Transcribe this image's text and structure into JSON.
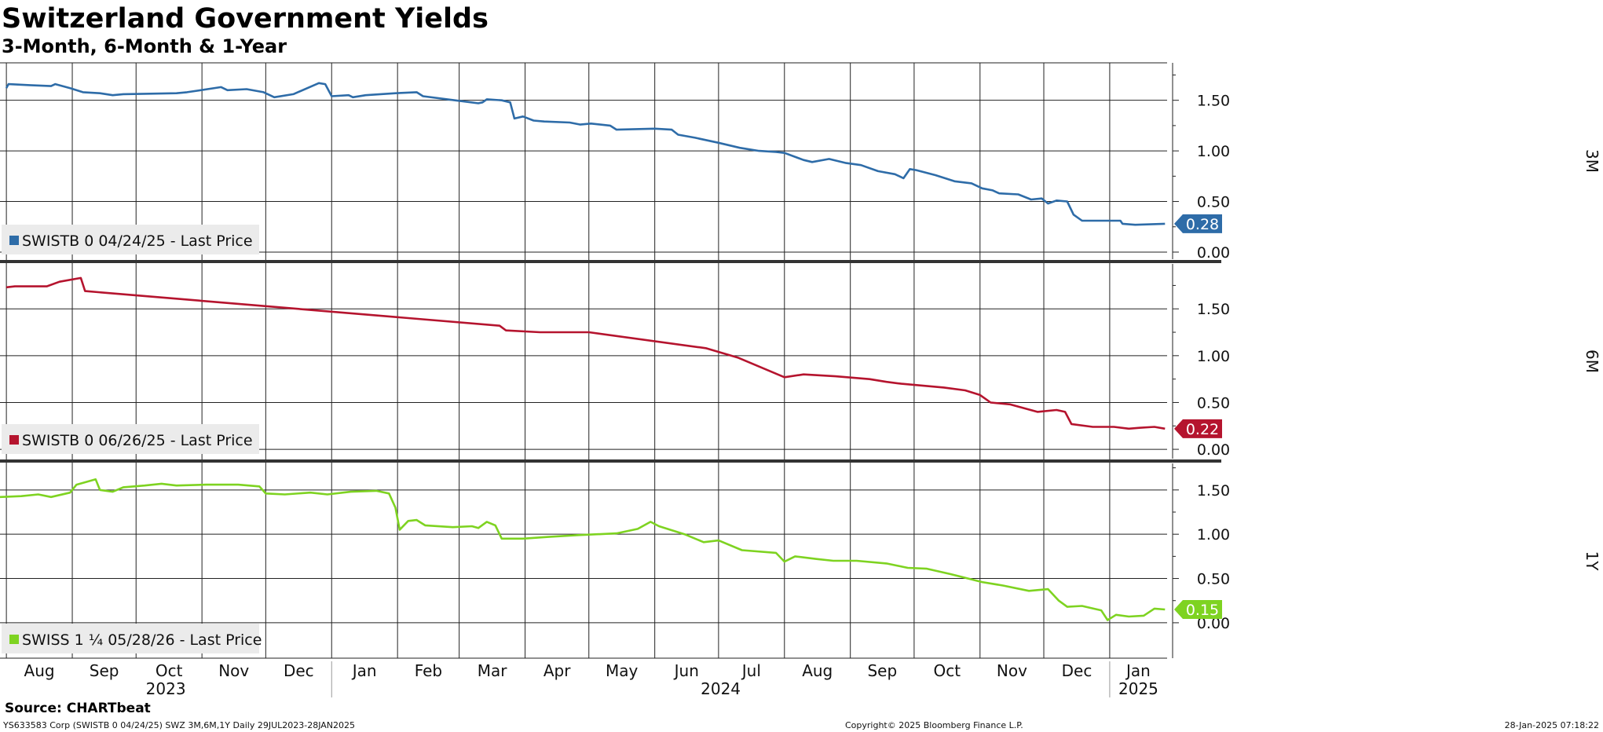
{
  "title": "Switzerland Government Yields",
  "subtitle": "3-Month, 6-Month & 1-Year",
  "footer": {
    "source": "Source: CHARTbeat",
    "left": "YS633583 Corp (SWISTB 0 04/24/25) SWZ 3M,6M,1Y  Daily 29JUL2023-28JAN2025",
    "center": "Copyright© 2025 Bloomberg Finance L.P.",
    "right": "28-Jan-2025 07:18:22"
  },
  "chart_data": {
    "type": "line",
    "x_axis": {
      "range": [
        "2023-07-29",
        "2025-01-28"
      ],
      "month_ticks": [
        {
          "date": "2023-08-01",
          "label": "Aug"
        },
        {
          "date": "2023-09-01",
          "label": "Sep"
        },
        {
          "date": "2023-10-01",
          "label": "Oct"
        },
        {
          "date": "2023-11-01",
          "label": "Nov"
        },
        {
          "date": "2023-12-01",
          "label": "Dec"
        },
        {
          "date": "2024-01-01",
          "label": "Jan"
        },
        {
          "date": "2024-02-01",
          "label": "Feb"
        },
        {
          "date": "2024-03-01",
          "label": "Mar"
        },
        {
          "date": "2024-04-01",
          "label": "Apr"
        },
        {
          "date": "2024-05-01",
          "label": "May"
        },
        {
          "date": "2024-06-01",
          "label": "Jun"
        },
        {
          "date": "2024-07-01",
          "label": "Jul"
        },
        {
          "date": "2024-08-01",
          "label": "Aug"
        },
        {
          "date": "2024-09-01",
          "label": "Sep"
        },
        {
          "date": "2024-10-01",
          "label": "Oct"
        },
        {
          "date": "2024-11-01",
          "label": "Nov"
        },
        {
          "date": "2024-12-01",
          "label": "Dec"
        },
        {
          "date": "2025-01-01",
          "label": "Jan"
        }
      ],
      "year_labels": [
        {
          "label": "2023",
          "from": "2023-07-29",
          "to": "2024-01-01"
        },
        {
          "label": "2024",
          "from": "2024-01-01",
          "to": "2025-01-01"
        },
        {
          "label": "2025",
          "from": "2025-01-01",
          "to": "2025-01-28"
        }
      ]
    },
    "panels": [
      {
        "label": "3M",
        "legend": "SWISTB 0 04/24/25 - Last Price",
        "color": "#2e6ca8",
        "ylim": [
          -0.07,
          1.87
        ],
        "yticks": [
          "0.00",
          "0.50",
          "1.00",
          "1.50"
        ],
        "last_value": "0.28",
        "series": {
          "name": "SWISTB 0 04/24/25 - Last Price",
          "points": [
            [
              "2023-08-01",
              1.62
            ],
            [
              "2023-08-02",
              1.66
            ],
            [
              "2023-08-12",
              1.65
            ],
            [
              "2023-08-22",
              1.64
            ],
            [
              "2023-08-24",
              1.66
            ],
            [
              "2023-08-31",
              1.62
            ],
            [
              "2023-09-06",
              1.58
            ],
            [
              "2023-09-14",
              1.57
            ],
            [
              "2023-09-20",
              1.55
            ],
            [
              "2023-09-25",
              1.56
            ],
            [
              "2023-10-20",
              1.57
            ],
            [
              "2023-10-25",
              1.58
            ],
            [
              "2023-11-10",
              1.63
            ],
            [
              "2023-11-13",
              1.6
            ],
            [
              "2023-11-22",
              1.61
            ],
            [
              "2023-11-30",
              1.58
            ],
            [
              "2023-12-05",
              1.53
            ],
            [
              "2023-12-14",
              1.56
            ],
            [
              "2023-12-26",
              1.67
            ],
            [
              "2023-12-29",
              1.66
            ],
            [
              "2024-01-01",
              1.54
            ],
            [
              "2024-01-09",
              1.55
            ],
            [
              "2024-01-11",
              1.53
            ],
            [
              "2024-01-17",
              1.55
            ],
            [
              "2024-01-31",
              1.57
            ],
            [
              "2024-02-10",
              1.58
            ],
            [
              "2024-02-13",
              1.54
            ],
            [
              "2024-02-28",
              1.5
            ],
            [
              "2024-03-10",
              1.47
            ],
            [
              "2024-03-12",
              1.48
            ],
            [
              "2024-03-14",
              1.51
            ],
            [
              "2024-03-21",
              1.5
            ],
            [
              "2024-03-25",
              1.48
            ],
            [
              "2024-03-27",
              1.32
            ],
            [
              "2024-03-31",
              1.34
            ],
            [
              "2024-04-05",
              1.3
            ],
            [
              "2024-04-10",
              1.29
            ],
            [
              "2024-04-22",
              1.28
            ],
            [
              "2024-04-27",
              1.26
            ],
            [
              "2024-05-02",
              1.27
            ],
            [
              "2024-05-11",
              1.25
            ],
            [
              "2024-05-14",
              1.21
            ],
            [
              "2024-06-01",
              1.22
            ],
            [
              "2024-06-09",
              1.21
            ],
            [
              "2024-06-12",
              1.16
            ],
            [
              "2024-06-20",
              1.13
            ],
            [
              "2024-07-01",
              1.08
            ],
            [
              "2024-07-11",
              1.03
            ],
            [
              "2024-07-20",
              1.0
            ],
            [
              "2024-07-28",
              0.99
            ],
            [
              "2024-08-01",
              0.98
            ],
            [
              "2024-08-10",
              0.91
            ],
            [
              "2024-08-14",
              0.89
            ],
            [
              "2024-08-22",
              0.92
            ],
            [
              "2024-08-30",
              0.88
            ],
            [
              "2024-09-06",
              0.86
            ],
            [
              "2024-09-14",
              0.8
            ],
            [
              "2024-09-22",
              0.77
            ],
            [
              "2024-09-26",
              0.73
            ],
            [
              "2024-09-29",
              0.82
            ],
            [
              "2024-10-02",
              0.81
            ],
            [
              "2024-10-11",
              0.76
            ],
            [
              "2024-10-20",
              0.7
            ],
            [
              "2024-10-28",
              0.68
            ],
            [
              "2024-11-02",
              0.63
            ],
            [
              "2024-11-07",
              0.61
            ],
            [
              "2024-11-10",
              0.58
            ],
            [
              "2024-11-19",
              0.57
            ],
            [
              "2024-11-25",
              0.52
            ],
            [
              "2024-11-30",
              0.53
            ],
            [
              "2024-12-03",
              0.48
            ],
            [
              "2024-12-07",
              0.51
            ],
            [
              "2024-12-12",
              0.5
            ],
            [
              "2024-12-15",
              0.37
            ],
            [
              "2024-12-19",
              0.31
            ],
            [
              "2024-12-24",
              0.31
            ],
            [
              "2025-01-02",
              0.31
            ],
            [
              "2025-01-06",
              0.31
            ],
            [
              "2025-01-07",
              0.28
            ],
            [
              "2025-01-13",
              0.27
            ],
            [
              "2025-01-27",
              0.28
            ]
          ]
        }
      },
      {
        "label": "6M",
        "legend": "SWISTB 0 06/26/25 - Last Price",
        "color": "#b5142e",
        "ylim": [
          -0.1,
          1.98
        ],
        "yticks": [
          "0.00",
          "0.50",
          "1.00",
          "1.50"
        ],
        "last_value": "0.22",
        "series": {
          "name": "SWISTB 0 06/26/25 - Last Price",
          "points": [
            [
              "2023-08-01",
              1.73
            ],
            [
              "2023-08-05",
              1.74
            ],
            [
              "2023-08-20",
              1.74
            ],
            [
              "2023-08-26",
              1.79
            ],
            [
              "2023-09-05",
              1.83
            ],
            [
              "2023-09-07",
              1.69
            ],
            [
              "2024-03-20",
              1.32
            ],
            [
              "2024-03-23",
              1.27
            ],
            [
              "2024-04-08",
              1.25
            ],
            [
              "2024-05-01",
              1.25
            ],
            [
              "2024-06-25",
              1.08
            ],
            [
              "2024-07-10",
              0.98
            ],
            [
              "2024-08-01",
              0.77
            ],
            [
              "2024-08-10",
              0.8
            ],
            [
              "2024-08-25",
              0.78
            ],
            [
              "2024-09-10",
              0.75
            ],
            [
              "2024-09-18",
              0.72
            ],
            [
              "2024-09-25",
              0.7
            ],
            [
              "2024-10-15",
              0.66
            ],
            [
              "2024-10-25",
              0.63
            ],
            [
              "2024-11-01",
              0.58
            ],
            [
              "2024-11-06",
              0.5
            ],
            [
              "2024-11-15",
              0.48
            ],
            [
              "2024-11-28",
              0.4
            ],
            [
              "2024-12-07",
              0.42
            ],
            [
              "2024-12-11",
              0.4
            ],
            [
              "2024-12-14",
              0.27
            ],
            [
              "2024-12-24",
              0.24
            ],
            [
              "2025-01-03",
              0.24
            ],
            [
              "2025-01-10",
              0.22
            ],
            [
              "2025-01-15",
              0.23
            ],
            [
              "2025-01-22",
              0.24
            ],
            [
              "2025-01-27",
              0.22
            ]
          ]
        }
      },
      {
        "label": "1Y",
        "legend": "SWISS 1 ¼ 05/28/26 - Last Price",
        "color": "#7ed321",
        "ylim": [
          -0.4,
          1.8
        ],
        "yticks": [
          "0.00",
          "0.50",
          "1.00",
          "1.50"
        ],
        "last_value": "0.15",
        "series": {
          "name": "SWISS 1 ¼ 05/28/26 - Last Price",
          "points": [
            [
              "2023-07-29",
              1.42
            ],
            [
              "2023-08-08",
              1.43
            ],
            [
              "2023-08-16",
              1.45
            ],
            [
              "2023-08-22",
              1.42
            ],
            [
              "2023-08-31",
              1.47
            ],
            [
              "2023-09-03",
              1.56
            ],
            [
              "2023-09-12",
              1.62
            ],
            [
              "2023-09-14",
              1.5
            ],
            [
              "2023-09-20",
              1.48
            ],
            [
              "2023-09-25",
              1.53
            ],
            [
              "2023-10-05",
              1.55
            ],
            [
              "2023-10-13",
              1.57
            ],
            [
              "2023-10-20",
              1.55
            ],
            [
              "2023-11-03",
              1.56
            ],
            [
              "2023-11-18",
              1.56
            ],
            [
              "2023-11-28",
              1.54
            ],
            [
              "2023-12-01",
              1.46
            ],
            [
              "2023-12-10",
              1.45
            ],
            [
              "2023-12-22",
              1.47
            ],
            [
              "2023-12-30",
              1.45
            ],
            [
              "2024-01-10",
              1.48
            ],
            [
              "2024-01-22",
              1.49
            ],
            [
              "2024-01-28",
              1.46
            ],
            [
              "2024-01-31",
              1.3
            ],
            [
              "2024-02-02",
              1.05
            ],
            [
              "2024-02-06",
              1.15
            ],
            [
              "2024-02-10",
              1.16
            ],
            [
              "2024-02-14",
              1.1
            ],
            [
              "2024-02-27",
              1.08
            ],
            [
              "2024-03-07",
              1.09
            ],
            [
              "2024-03-10",
              1.07
            ],
            [
              "2024-03-14",
              1.14
            ],
            [
              "2024-03-18",
              1.1
            ],
            [
              "2024-03-21",
              0.95
            ],
            [
              "2024-03-31",
              0.95
            ],
            [
              "2024-04-12",
              0.97
            ],
            [
              "2024-04-26",
              0.99
            ],
            [
              "2024-05-14",
              1.01
            ],
            [
              "2024-05-24",
              1.06
            ],
            [
              "2024-05-30",
              1.14
            ],
            [
              "2024-06-03",
              1.09
            ],
            [
              "2024-06-15",
              1.0
            ],
            [
              "2024-06-24",
              0.91
            ],
            [
              "2024-07-01",
              0.93
            ],
            [
              "2024-07-12",
              0.82
            ],
            [
              "2024-07-28",
              0.79
            ],
            [
              "2024-08-01",
              0.69
            ],
            [
              "2024-08-06",
              0.75
            ],
            [
              "2024-08-16",
              0.72
            ],
            [
              "2024-08-24",
              0.7
            ],
            [
              "2024-09-04",
              0.7
            ],
            [
              "2024-09-18",
              0.67
            ],
            [
              "2024-09-28",
              0.62
            ],
            [
              "2024-10-07",
              0.61
            ],
            [
              "2024-10-18",
              0.55
            ],
            [
              "2024-10-23",
              0.52
            ],
            [
              "2024-11-02",
              0.46
            ],
            [
              "2024-11-12",
              0.42
            ],
            [
              "2024-11-24",
              0.36
            ],
            [
              "2024-12-03",
              0.38
            ],
            [
              "2024-12-08",
              0.25
            ],
            [
              "2024-12-12",
              0.18
            ],
            [
              "2024-12-19",
              0.19
            ],
            [
              "2024-12-28",
              0.14
            ],
            [
              "2024-12-31",
              0.03
            ],
            [
              "2025-01-04",
              0.09
            ],
            [
              "2025-01-10",
              0.07
            ],
            [
              "2025-01-17",
              0.08
            ],
            [
              "2025-01-22",
              0.16
            ],
            [
              "2025-01-27",
              0.15
            ]
          ]
        }
      }
    ]
  }
}
